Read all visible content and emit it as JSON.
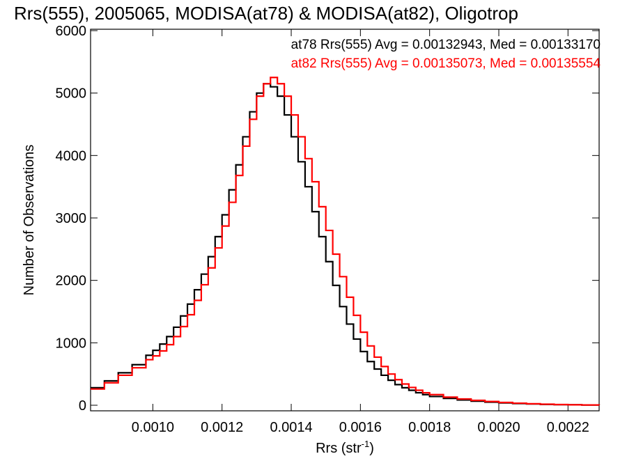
{
  "chart_data": {
    "type": "line",
    "step": true,
    "title": "Rrs(555), 2005065, MODISA(at78) & MODISA(at82), Oligotrop",
    "xlabel": "Rrs (str",
    "xlabel_sup": "-1",
    "xlabel_end": ")",
    "ylabel": "Number of Observations",
    "xlim": [
      0.00082,
      0.00229
    ],
    "ylim": [
      0,
      6000
    ],
    "grid": false,
    "legend_placement": "top-right",
    "x_ticks": [
      {
        "value": 0.001,
        "label": "0.0010"
      },
      {
        "value": 0.0012,
        "label": "0.0012"
      },
      {
        "value": 0.0014,
        "label": "0.0014"
      },
      {
        "value": 0.0016,
        "label": "0.0016"
      },
      {
        "value": 0.0018,
        "label": "0.0018"
      },
      {
        "value": 0.002,
        "label": "0.0020"
      },
      {
        "value": 0.0022,
        "label": "0.0022"
      }
    ],
    "y_ticks": [
      {
        "value": 0,
        "label": "0"
      },
      {
        "value": 1000,
        "label": "1000"
      },
      {
        "value": 2000,
        "label": "2000"
      },
      {
        "value": 3000,
        "label": "3000"
      },
      {
        "value": 4000,
        "label": "4000"
      },
      {
        "value": 5000,
        "label": "5000"
      },
      {
        "value": 6000,
        "label": "6000"
      }
    ],
    "series": [
      {
        "name": "at78",
        "color": "#000000",
        "legend_label": "at78 Rrs(555) Avg = 0.00132943, Med = 0.00133170",
        "x": [
          0.00082,
          0.00086,
          0.0009,
          0.00094,
          0.00098,
          0.001,
          0.00102,
          0.00104,
          0.00106,
          0.00108,
          0.0011,
          0.00112,
          0.00114,
          0.00116,
          0.00118,
          0.0012,
          0.00122,
          0.00124,
          0.00126,
          0.00128,
          0.0013,
          0.00132,
          0.00134,
          0.00136,
          0.00138,
          0.0014,
          0.00142,
          0.00144,
          0.00146,
          0.00148,
          0.0015,
          0.00152,
          0.00154,
          0.00156,
          0.00158,
          0.0016,
          0.00162,
          0.00164,
          0.00166,
          0.00168,
          0.0017,
          0.00172,
          0.00174,
          0.00176,
          0.00178,
          0.0018,
          0.00184,
          0.00188,
          0.00192,
          0.00196,
          0.002,
          0.00204,
          0.00208,
          0.00212,
          0.00216,
          0.0022,
          0.00224,
          0.00229
        ],
        "y": [
          280,
          390,
          520,
          650,
          800,
          880,
          980,
          1100,
          1250,
          1430,
          1620,
          1850,
          2100,
          2380,
          2700,
          3050,
          3450,
          3850,
          4300,
          4700,
          5000,
          5150,
          5100,
          4950,
          4650,
          4300,
          3900,
          3500,
          3100,
          2700,
          2300,
          1920,
          1580,
          1300,
          1060,
          860,
          700,
          580,
          480,
          400,
          330,
          280,
          240,
          200,
          170,
          140,
          110,
          85,
          65,
          50,
          38,
          28,
          20,
          14,
          10,
          7,
          4,
          2
        ]
      },
      {
        "name": "at82",
        "color": "#ff0000",
        "legend_label": "at82 Rrs(555) Avg = 0.00135073, Med = 0.00135554",
        "x": [
          0.00082,
          0.00086,
          0.0009,
          0.00094,
          0.00098,
          0.001,
          0.00102,
          0.00104,
          0.00106,
          0.00108,
          0.0011,
          0.00112,
          0.00114,
          0.00116,
          0.00118,
          0.0012,
          0.00122,
          0.00124,
          0.00126,
          0.00128,
          0.0013,
          0.00132,
          0.00134,
          0.00136,
          0.00138,
          0.0014,
          0.00142,
          0.00144,
          0.00146,
          0.00148,
          0.0015,
          0.00152,
          0.00154,
          0.00156,
          0.00158,
          0.0016,
          0.00162,
          0.00164,
          0.00166,
          0.00168,
          0.0017,
          0.00172,
          0.00174,
          0.00176,
          0.00178,
          0.0018,
          0.00184,
          0.00188,
          0.00192,
          0.00196,
          0.002,
          0.00204,
          0.00208,
          0.00212,
          0.00216,
          0.0022,
          0.00224,
          0.00229
        ],
        "y": [
          260,
          360,
          480,
          600,
          730,
          790,
          870,
          970,
          1100,
          1260,
          1450,
          1680,
          1930,
          2200,
          2520,
          2870,
          3250,
          3680,
          4150,
          4580,
          4950,
          5150,
          5250,
          5150,
          4950,
          4650,
          4300,
          3950,
          3580,
          3180,
          2800,
          2420,
          2060,
          1730,
          1440,
          1170,
          950,
          770,
          620,
          500,
          410,
          340,
          285,
          240,
          200,
          170,
          130,
          100,
          78,
          60,
          45,
          33,
          24,
          17,
          11,
          7,
          4,
          2
        ]
      }
    ]
  }
}
